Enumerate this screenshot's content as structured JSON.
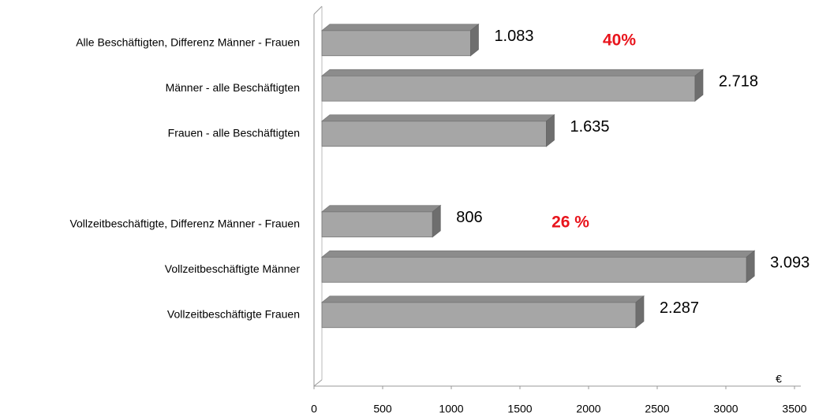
{
  "chart_data": {
    "type": "bar",
    "orientation": "horizontal",
    "categories": [
      "Alle Beschäftigten, Differenz Männer - Frauen",
      "Männer - alle Beschäftigten",
      "Frauen - alle Beschäftigten",
      null,
      "Vollzeitbeschäftigte, Differenz Männer - Frauen",
      "Vollzeitbeschäftigte Männer",
      "Vollzeitbeschäftigte Frauen"
    ],
    "values": [
      1083,
      2718,
      1635,
      null,
      806,
      3093,
      2287
    ],
    "value_labels": [
      "1.083",
      "2.718",
      "1.635",
      null,
      "806",
      "3.093",
      "2.287"
    ],
    "color": "#a6a6a6",
    "x_label": "€",
    "xlim": [
      0,
      3500
    ],
    "xticks": [
      0,
      500,
      1000,
      1500,
      2000,
      2500,
      3000,
      3500
    ],
    "annotations": [
      {
        "text": "40%"
      },
      {
        "text": "26 %"
      }
    ]
  }
}
